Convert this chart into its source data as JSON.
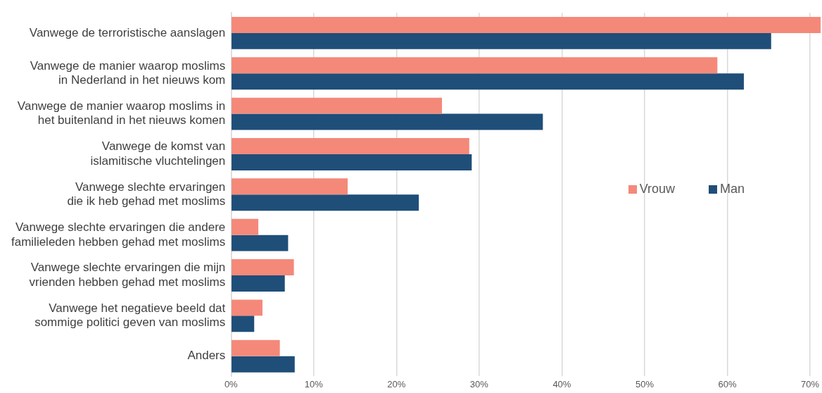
{
  "chart_data": {
    "type": "bar",
    "orientation": "horizontal",
    "categories": [
      "Vanwege de terroristische aanslagen",
      "Vanwege de manier waarop moslims\nin Nederland in het nieuws kom",
      "Vanwege de manier waarop moslims in\nhet buitenland in het nieuws komen",
      "Vanwege de komst van\nislamitische vluchtelingen",
      "Vanwege slechte ervaringen\ndie ik heb gehad met moslims",
      "Vanwege slechte ervaringen die andere\nfamilieleden hebben gehad met moslims",
      "Vanwege slechte ervaringen die mijn\nvrienden hebben gehad met moslims",
      "Vanwege het negatieve beeld dat\nsommige politici geven van moslims",
      "Anders"
    ],
    "series": [
      {
        "name": "Vrouw",
        "color": "#f4897a",
        "values": [
          71.3,
          58.8,
          25.5,
          28.8,
          14.1,
          3.3,
          7.6,
          3.8,
          5.9
        ]
      },
      {
        "name": "Man",
        "color": "#1f4e79",
        "values": [
          65.3,
          62.0,
          37.7,
          29.1,
          22.7,
          6.9,
          6.5,
          2.8,
          7.7
        ]
      }
    ],
    "xlim": [
      0,
      71.3
    ],
    "xticks": [
      {
        "value": 0,
        "label": "0%"
      },
      {
        "value": 10,
        "label": "10%"
      },
      {
        "value": 20,
        "label": "20%"
      },
      {
        "value": 30,
        "label": "30%"
      },
      {
        "value": 40,
        "label": "40%"
      },
      {
        "value": 50,
        "label": "50%"
      },
      {
        "value": 60,
        "label": "60%"
      },
      {
        "value": 70,
        "label": "70%"
      }
    ],
    "grid": "x",
    "legend": "right"
  }
}
